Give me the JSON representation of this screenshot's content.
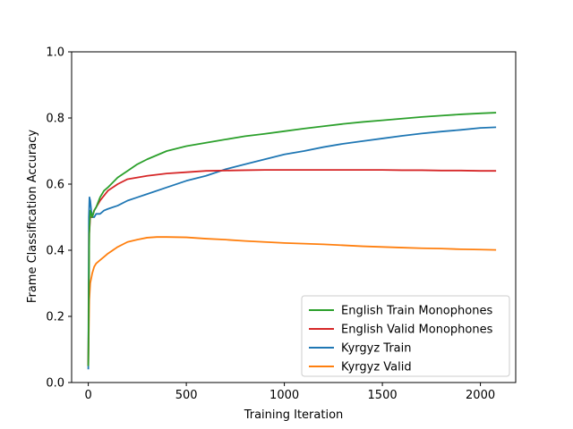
{
  "chart_data": {
    "type": "line",
    "title": "",
    "xlabel": "Training Iteration",
    "ylabel": "Frame Classification Accuracy",
    "xlim": [
      -85,
      2180
    ],
    "ylim": [
      0.0,
      1.0
    ],
    "xticks": [
      0,
      500,
      1000,
      1500,
      2000
    ],
    "yticks": [
      0.0,
      0.2,
      0.4,
      0.6,
      0.8,
      1.0
    ],
    "xtick_labels": [
      "0",
      "500",
      "1000",
      "1500",
      "2000"
    ],
    "ytick_labels": [
      "0.0",
      "0.2",
      "0.4",
      "0.6",
      "0.8",
      "1.0"
    ],
    "grid": false,
    "legend_position": "lower-right",
    "legend": [
      "English Train Monophones",
      "English Valid Monophones",
      "Kyrgyz Train",
      "Kyrgyz Valid"
    ],
    "series": [
      {
        "name": "English Train Monophones",
        "color": "#2ca02c",
        "x": [
          0,
          5,
          10,
          20,
          30,
          40,
          60,
          80,
          100,
          150,
          200,
          250,
          300,
          400,
          500,
          600,
          700,
          800,
          900,
          1000,
          1100,
          1200,
          1300,
          1400,
          1500,
          1600,
          1700,
          1800,
          1900,
          2000,
          2080
        ],
        "y": [
          0.05,
          0.45,
          0.52,
          0.5,
          0.52,
          0.53,
          0.56,
          0.58,
          0.59,
          0.62,
          0.64,
          0.66,
          0.675,
          0.7,
          0.715,
          0.725,
          0.735,
          0.745,
          0.752,
          0.76,
          0.768,
          0.775,
          0.782,
          0.788,
          0.793,
          0.798,
          0.803,
          0.807,
          0.811,
          0.814,
          0.816
        ]
      },
      {
        "name": "English Valid Monophones",
        "color": "#d62728",
        "x": [
          0,
          5,
          10,
          20,
          30,
          40,
          60,
          80,
          100,
          150,
          200,
          250,
          300,
          400,
          500,
          600,
          700,
          800,
          900,
          1000,
          1100,
          1200,
          1300,
          1400,
          1500,
          1600,
          1700,
          1800,
          1900,
          2000,
          2080
        ],
        "y": [
          0.05,
          0.45,
          0.5,
          0.5,
          0.52,
          0.53,
          0.55,
          0.565,
          0.58,
          0.6,
          0.615,
          0.62,
          0.625,
          0.632,
          0.636,
          0.64,
          0.641,
          0.642,
          0.643,
          0.643,
          0.643,
          0.643,
          0.643,
          0.643,
          0.643,
          0.642,
          0.642,
          0.641,
          0.641,
          0.64,
          0.64
        ]
      },
      {
        "name": "Kyrgyz Train",
        "color": "#1f77b4",
        "x": [
          0,
          3,
          6,
          10,
          15,
          20,
          30,
          40,
          50,
          60,
          80,
          100,
          150,
          200,
          250,
          300,
          400,
          500,
          600,
          700,
          800,
          900,
          1000,
          1100,
          1200,
          1300,
          1400,
          1500,
          1600,
          1700,
          1800,
          1900,
          2000,
          2080
        ],
        "y": [
          0.04,
          0.5,
          0.56,
          0.55,
          0.52,
          0.5,
          0.5,
          0.51,
          0.51,
          0.51,
          0.52,
          0.525,
          0.535,
          0.55,
          0.56,
          0.57,
          0.59,
          0.61,
          0.625,
          0.645,
          0.66,
          0.675,
          0.69,
          0.7,
          0.712,
          0.722,
          0.73,
          0.738,
          0.746,
          0.753,
          0.759,
          0.764,
          0.77,
          0.772
        ]
      },
      {
        "name": "Kyrgyz Valid",
        "color": "#ff7f0e",
        "x": [
          0,
          5,
          10,
          20,
          30,
          40,
          60,
          80,
          100,
          150,
          200,
          250,
          300,
          350,
          400,
          500,
          600,
          700,
          800,
          900,
          1000,
          1100,
          1200,
          1300,
          1400,
          1500,
          1600,
          1700,
          1800,
          1900,
          2000,
          2080
        ],
        "y": [
          0.05,
          0.25,
          0.3,
          0.33,
          0.35,
          0.36,
          0.37,
          0.38,
          0.39,
          0.41,
          0.425,
          0.432,
          0.438,
          0.44,
          0.44,
          0.439,
          0.435,
          0.432,
          0.428,
          0.425,
          0.422,
          0.42,
          0.418,
          0.415,
          0.412,
          0.41,
          0.408,
          0.406,
          0.405,
          0.403,
          0.402,
          0.401
        ]
      }
    ]
  }
}
